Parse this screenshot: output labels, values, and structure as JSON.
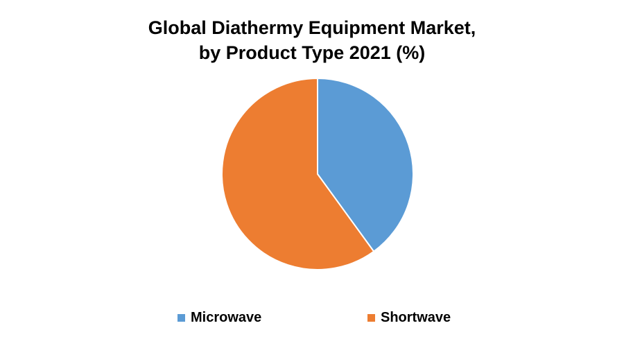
{
  "chart_data": {
    "type": "pie",
    "title_line1": "Global Diathermy Equipment Market,",
    "title_line2": "by Product Type 2021 (%)",
    "categories": [
      "Microwave",
      "Shortwave"
    ],
    "values": [
      40,
      60
    ],
    "colors": [
      "#5B9BD5",
      "#ED7D31"
    ],
    "legend_position": "bottom"
  }
}
